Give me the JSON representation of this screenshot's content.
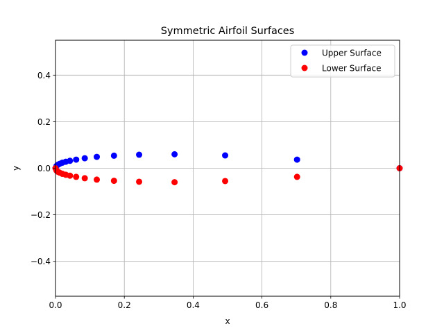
{
  "chart_data": {
    "type": "scatter",
    "title": "Symmetric Airfoil Surfaces",
    "xlabel": "x",
    "ylabel": "y",
    "xlim": [
      0.0,
      1.0
    ],
    "ylim": [
      -0.55,
      0.55
    ],
    "xticks": [
      0.0,
      0.2,
      0.4,
      0.6,
      0.8,
      1.0
    ],
    "xtick_labels": [
      "0.0",
      "0.2",
      "0.4",
      "0.6",
      "0.8",
      "1.0"
    ],
    "yticks": [
      -0.4,
      -0.2,
      0.0,
      0.2,
      0.4
    ],
    "ytick_labels": [
      "−0.4",
      "−0.2",
      "0.0",
      "0.2",
      "0.4"
    ],
    "grid": true,
    "legend_position": "top-right",
    "series": [
      {
        "name": "Upper Surface",
        "color": "#0000ff",
        "x": [
          0.0,
          0.003,
          0.007,
          0.012,
          0.02,
          0.03,
          0.042,
          0.06,
          0.085,
          0.12,
          0.17,
          0.243,
          0.346,
          0.493,
          0.702,
          1.0
        ],
        "y": [
          0.0,
          0.01,
          0.015,
          0.019,
          0.024,
          0.028,
          0.032,
          0.037,
          0.043,
          0.049,
          0.054,
          0.058,
          0.06,
          0.055,
          0.037,
          0.0
        ]
      },
      {
        "name": "Lower Surface",
        "color": "#ff0000",
        "x": [
          0.0,
          0.003,
          0.007,
          0.012,
          0.02,
          0.03,
          0.042,
          0.06,
          0.085,
          0.12,
          0.17,
          0.243,
          0.346,
          0.493,
          0.702,
          1.0
        ],
        "y": [
          0.0,
          -0.01,
          -0.015,
          -0.019,
          -0.024,
          -0.028,
          -0.032,
          -0.037,
          -0.043,
          -0.049,
          -0.054,
          -0.058,
          -0.06,
          -0.055,
          -0.037,
          0.0
        ]
      }
    ]
  }
}
